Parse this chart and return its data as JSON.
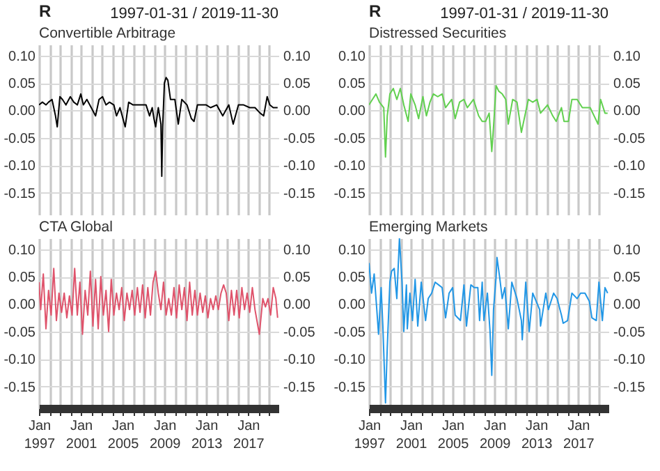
{
  "chart_data": [
    {
      "type": "line",
      "title": "Convertible Arbitrage",
      "annotations": [
        "R",
        "1997-01-31 / 2019-11-30"
      ],
      "tick_labels": "y",
      "grid": true,
      "xlim": [
        "1997-01",
        "2019-12"
      ],
      "ylim": [
        -0.19,
        0.12
      ],
      "yticks": [
        -0.15,
        {
          "value": -0.1,
          "label": "-0.10"
        },
        -0.05,
        {
          "value": 0,
          "label": "0.00"
        },
        0.05,
        {
          "value": 0.1,
          "label": "0.10"
        }
      ],
      "y2lim": [
        -0.19,
        0.12
      ],
      "y2ticks": [
        -0.15,
        {
          "value": -0.1,
          "label": "-0.10"
        },
        -0.05,
        {
          "value": 0,
          "label": "0.00"
        },
        0.05,
        {
          "value": 0.1,
          "label": "0.10"
        }
      ],
      "xticks": [
        {
          "value": "1997-01",
          "label": null
        },
        {
          "value": "1998-01",
          "label": null
        },
        {
          "value": "1999-01",
          "label": null
        },
        {
          "value": "2000-01",
          "label": null
        },
        {
          "value": "2001-01",
          "label": null
        },
        {
          "value": "2002-01",
          "label": null
        },
        {
          "value": "2003-01",
          "label": null
        },
        {
          "value": "2004-01",
          "label": null
        },
        {
          "value": "2005-01",
          "label": null
        },
        {
          "value": "2006-01",
          "label": null
        },
        {
          "value": "2007-01",
          "label": null
        },
        {
          "value": "2008-01",
          "label": null
        },
        {
          "value": "2009-01",
          "label": null
        },
        {
          "value": "2010-01",
          "label": null
        },
        {
          "value": "2011-01",
          "label": null
        },
        {
          "value": "2012-01",
          "label": null
        },
        {
          "value": "2013-01",
          "label": null
        },
        {
          "value": "2014-01",
          "label": null
        },
        {
          "value": "2015-01",
          "label": null
        },
        {
          "value": "2016-01",
          "label": null
        },
        {
          "value": "2017-01",
          "label": null
        },
        {
          "value": "2018-01",
          "label": null
        },
        {
          "value": "2019-01",
          "label": null
        }
      ],
      "series": [
        {
          "color": "#000000",
          "x": [
            "1997-01",
            "1997-05",
            "1997-09",
            "1997-12",
            "1998-04",
            "1998-08",
            "1998-10",
            "1999-01",
            "1999-04",
            "1999-08",
            "2000-01",
            "2000-05",
            "2000-09",
            "2001-01",
            "2001-04",
            "2001-08",
            "2002-01",
            "2002-06",
            "2002-10",
            "2003-02",
            "2003-06",
            "2003-10",
            "2004-03",
            "2004-06",
            "2004-10",
            "2005-04",
            "2005-08",
            "2006-01",
            "2006-06",
            "2006-12",
            "2007-04",
            "2007-08",
            "2007-11",
            "2008-01",
            "2008-03",
            "2008-06",
            "2008-09",
            "2008-10",
            "2008-11",
            "2009-01",
            "2009-03",
            "2009-05",
            "2009-08",
            "2010-01",
            "2010-05",
            "2010-09",
            "2011-03",
            "2011-08",
            "2011-11",
            "2012-03",
            "2012-08",
            "2013-01",
            "2013-06",
            "2014-01",
            "2014-08",
            "2015-03",
            "2015-08",
            "2016-02",
            "2016-08",
            "2017-03",
            "2017-09",
            "2018-03",
            "2018-07",
            "2018-11",
            "2019-02",
            "2019-06",
            "2019-11"
          ],
          "values": [
            0.01,
            0.015,
            0.01,
            0.015,
            0.02,
            -0.01,
            -0.03,
            0.025,
            0.02,
            0.01,
            0.025,
            0.015,
            0.01,
            0.03,
            0.01,
            0.02,
            0.005,
            -0.01,
            0.02,
            0.025,
            0.01,
            0.015,
            0.01,
            -0.01,
            0.005,
            -0.03,
            0.015,
            0.01,
            0.01,
            0.01,
            0.01,
            -0.01,
            0.005,
            -0.015,
            -0.03,
            0.005,
            -0.025,
            -0.12,
            -0.03,
            0.05,
            0.06,
            0.055,
            0.02,
            0.02,
            -0.025,
            0.02,
            0.01,
            -0.015,
            -0.02,
            0.01,
            0.01,
            0.01,
            0.005,
            0.01,
            -0.01,
            0.01,
            -0.025,
            0.01,
            0.01,
            0.005,
            0.005,
            -0.005,
            -0.01,
            0.025,
            0.01,
            0.005,
            0.005
          ]
        }
      ]
    },
    {
      "type": "line",
      "title": "Distressed Securities",
      "annotations": [
        "R",
        "1997-01-31 / 2019-11-30"
      ],
      "tick_labels": "y",
      "grid": true,
      "xlim": [
        "1997-01",
        "2019-12"
      ],
      "ylim": [
        -0.19,
        0.12
      ],
      "yticks": [
        -0.15,
        {
          "value": -0.1,
          "label": "-0.10"
        },
        -0.05,
        {
          "value": 0,
          "label": "0.00"
        },
        0.05,
        {
          "value": 0.1,
          "label": "0.10"
        }
      ],
      "y2lim": [
        -0.19,
        0.12
      ],
      "y2ticks": [
        -0.15,
        {
          "value": -0.1,
          "label": "-0.10"
        },
        -0.05,
        {
          "value": 0,
          "label": "0.00"
        },
        0.05,
        {
          "value": 0.1,
          "label": "0.10"
        }
      ],
      "xticks": [
        {
          "value": "1997-01",
          "label": null
        },
        {
          "value": "1998-01",
          "label": null
        },
        {
          "value": "1999-01",
          "label": null
        },
        {
          "value": "2000-01",
          "label": null
        },
        {
          "value": "2001-01",
          "label": null
        },
        {
          "value": "2002-01",
          "label": null
        },
        {
          "value": "2003-01",
          "label": null
        },
        {
          "value": "2004-01",
          "label": null
        },
        {
          "value": "2005-01",
          "label": null
        },
        {
          "value": "2006-01",
          "label": null
        },
        {
          "value": "2007-01",
          "label": null
        },
        {
          "value": "2008-01",
          "label": null
        },
        {
          "value": "2009-01",
          "label": null
        },
        {
          "value": "2010-01",
          "label": null
        },
        {
          "value": "2011-01",
          "label": null
        },
        {
          "value": "2012-01",
          "label": null
        },
        {
          "value": "2013-01",
          "label": null
        },
        {
          "value": "2014-01",
          "label": null
        },
        {
          "value": "2015-01",
          "label": null
        },
        {
          "value": "2016-01",
          "label": null
        },
        {
          "value": "2017-01",
          "label": null
        },
        {
          "value": "2018-01",
          "label": null
        },
        {
          "value": "2019-01",
          "label": null
        }
      ],
      "series": [
        {
          "color": "#61d04f",
          "x": [
            "1997-01",
            "1997-05",
            "1997-09",
            "1998-01",
            "1998-06",
            "1998-08",
            "1998-10",
            "1999-01",
            "1999-05",
            "1999-09",
            "2000-01",
            "2000-05",
            "2000-10",
            "2001-01",
            "2001-06",
            "2001-10",
            "2002-03",
            "2002-07",
            "2002-11",
            "2003-03",
            "2003-08",
            "2004-01",
            "2004-05",
            "2004-12",
            "2005-04",
            "2005-09",
            "2006-02",
            "2006-06",
            "2007-01",
            "2007-07",
            "2007-11",
            "2008-03",
            "2008-07",
            "2008-10",
            "2008-12",
            "2009-03",
            "2009-06",
            "2009-10",
            "2010-02",
            "2010-05",
            "2010-10",
            "2011-03",
            "2011-08",
            "2011-12",
            "2012-04",
            "2012-09",
            "2013-02",
            "2013-06",
            "2014-02",
            "2014-08",
            "2014-12",
            "2015-06",
            "2015-09",
            "2016-02",
            "2016-06",
            "2016-12",
            "2017-06",
            "2018-03",
            "2018-12",
            "2019-03",
            "2019-08",
            "2019-11"
          ],
          "values": [
            0.01,
            0.02,
            0.03,
            0.015,
            0.005,
            -0.085,
            -0.01,
            0.03,
            0.04,
            0.02,
            0.04,
            0.01,
            -0.02,
            0.03,
            0.01,
            -0.015,
            0.025,
            -0.01,
            0.015,
            0.03,
            0.025,
            0.03,
            0.005,
            0.02,
            -0.015,
            0.015,
            0.02,
            0.005,
            0.02,
            -0.01,
            -0.02,
            -0.02,
            -0.005,
            -0.075,
            -0.03,
            0.045,
            0.035,
            0.03,
            0.02,
            -0.025,
            0.02,
            0.015,
            -0.04,
            -0.01,
            0.02,
            0.015,
            0.02,
            -0.005,
            0.01,
            -0.01,
            -0.02,
            0.005,
            -0.02,
            -0.02,
            0.02,
            0.02,
            0.005,
            0.005,
            -0.025,
            0.02,
            -0.005,
            -0.005
          ]
        }
      ]
    },
    {
      "type": "line",
      "title": "CTA Global",
      "grid": true,
      "xlim": [
        "1997-01",
        "2019-12"
      ],
      "ylim": [
        -0.19,
        0.12
      ],
      "yticks": [
        -0.15,
        {
          "value": -0.1,
          "label": "-0.10"
        },
        -0.05,
        {
          "value": 0,
          "label": "0.00"
        },
        0.05,
        {
          "value": 0.1,
          "label": "0.10"
        }
      ],
      "y2lim": [
        -0.19,
        0.12
      ],
      "y2ticks": [
        -0.15,
        {
          "value": -0.1,
          "label": "-0.10"
        },
        -0.05,
        {
          "value": 0,
          "label": "0.00"
        },
        0.05,
        {
          "value": 0.1,
          "label": "0.10"
        }
      ],
      "xticks": [
        {
          "value": "1997-01",
          "label": "Jan 1997"
        },
        {
          "value": "1998-01",
          "label": null
        },
        {
          "value": "1999-01",
          "label": null
        },
        {
          "value": "2000-01",
          "label": null
        },
        {
          "value": "2001-01",
          "label": "Jan 2001"
        },
        {
          "value": "2002-01",
          "label": null
        },
        {
          "value": "2003-01",
          "label": null
        },
        {
          "value": "2004-01",
          "label": null
        },
        {
          "value": "2005-01",
          "label": "Jan 2005"
        },
        {
          "value": "2006-01",
          "label": null
        },
        {
          "value": "2007-01",
          "label": null
        },
        {
          "value": "2008-01",
          "label": null
        },
        {
          "value": "2009-01",
          "label": "Jan 2009"
        },
        {
          "value": "2010-01",
          "label": null
        },
        {
          "value": "2011-01",
          "label": null
        },
        {
          "value": "2012-01",
          "label": null
        },
        {
          "value": "2013-01",
          "label": "Jan 2013"
        },
        {
          "value": "2014-01",
          "label": null
        },
        {
          "value": "2015-01",
          "label": null
        },
        {
          "value": "2016-01",
          "label": null
        },
        {
          "value": "2017-01",
          "label": "Jan 2017"
        },
        {
          "value": "2018-01",
          "label": null
        },
        {
          "value": "2019-01",
          "label": null
        }
      ],
      "series": [
        {
          "color": "#df536b",
          "x": [
            "1997-01",
            "1997-03",
            "1997-06",
            "1997-09",
            "1997-12",
            "1998-03",
            "1998-06",
            "1998-09",
            "1998-12",
            "1999-03",
            "1999-06",
            "1999-09",
            "1999-12",
            "2000-03",
            "2000-06",
            "2000-09",
            "2000-12",
            "2001-03",
            "2001-06",
            "2001-09",
            "2001-12",
            "2002-03",
            "2002-06",
            "2002-09",
            "2002-12",
            "2003-03",
            "2003-06",
            "2003-09",
            "2003-12",
            "2004-03",
            "2004-06",
            "2004-09",
            "2004-12",
            "2005-03",
            "2005-06",
            "2005-09",
            "2005-12",
            "2006-03",
            "2006-06",
            "2006-09",
            "2006-12",
            "2007-03",
            "2007-06",
            "2007-09",
            "2007-12",
            "2008-03",
            "2008-06",
            "2008-09",
            "2008-12",
            "2009-03",
            "2009-06",
            "2009-09",
            "2009-12",
            "2010-03",
            "2010-06",
            "2010-09",
            "2010-12",
            "2011-03",
            "2011-06",
            "2011-09",
            "2011-12",
            "2012-03",
            "2012-06",
            "2012-09",
            "2012-12",
            "2013-03",
            "2013-06",
            "2013-09",
            "2013-12",
            "2014-03",
            "2014-06",
            "2014-09",
            "2014-12",
            "2015-03",
            "2015-06",
            "2015-09",
            "2015-12",
            "2016-03",
            "2016-06",
            "2016-09",
            "2016-12",
            "2017-03",
            "2017-06",
            "2017-09",
            "2018-02",
            "2018-06",
            "2018-09",
            "2018-12",
            "2019-03",
            "2019-06",
            "2019-09",
            "2019-11"
          ],
          "values": [
            0.04,
            -0.01,
            0.055,
            -0.045,
            0.025,
            -0.02,
            0.065,
            -0.03,
            0.02,
            -0.015,
            0.02,
            -0.025,
            0.015,
            -0.02,
            0.065,
            -0.02,
            0.04,
            -0.055,
            0.025,
            -0.02,
            0.06,
            -0.04,
            0.045,
            -0.045,
            0.05,
            -0.02,
            0.025,
            -0.05,
            0.045,
            -0.02,
            0.02,
            -0.01,
            0.03,
            -0.03,
            0.02,
            -0.01,
            0.025,
            -0.02,
            0.03,
            -0.015,
            0.035,
            -0.025,
            0.03,
            -0.02,
            0.04,
            0.06,
            0.02,
            -0.01,
            0.04,
            -0.02,
            0.01,
            -0.02,
            0.03,
            -0.025,
            0.035,
            -0.01,
            0.03,
            -0.03,
            0.04,
            -0.02,
            0.025,
            -0.02,
            0.02,
            -0.015,
            0.015,
            -0.025,
            0.01,
            -0.01,
            0.015,
            -0.01,
            0.02,
            0.035,
            0.02,
            -0.03,
            0.025,
            -0.02,
            0.025,
            -0.025,
            0.03,
            -0.01,
            0.02,
            -0.015,
            0.03,
            -0.01,
            -0.055,
            0.01,
            -0.005,
            0.01,
            -0.02,
            0.03,
            0.01,
            -0.025
          ]
        }
      ]
    },
    {
      "type": "line",
      "title": "Emerging Markets",
      "grid": true,
      "xlim": [
        "1997-01",
        "2019-12"
      ],
      "ylim": [
        -0.19,
        0.12
      ],
      "yticks": [
        -0.15,
        {
          "value": -0.1,
          "label": "-0.10"
        },
        -0.05,
        {
          "value": 0,
          "label": "0.00"
        },
        0.05,
        {
          "value": 0.1,
          "label": "0.10"
        }
      ],
      "y2lim": [
        -0.19,
        0.12
      ],
      "y2ticks": [
        -0.15,
        {
          "value": -0.1,
          "label": "-0.10"
        },
        -0.05,
        {
          "value": 0,
          "label": "0.00"
        },
        0.05,
        {
          "value": 0.1,
          "label": "0.10"
        }
      ],
      "xticks": [
        {
          "value": "1997-01",
          "label": "Jan 1997"
        },
        {
          "value": "1998-01",
          "label": null
        },
        {
          "value": "1999-01",
          "label": null
        },
        {
          "value": "2000-01",
          "label": null
        },
        {
          "value": "2001-01",
          "label": "Jan 2001"
        },
        {
          "value": "2002-01",
          "label": null
        },
        {
          "value": "2003-01",
          "label": null
        },
        {
          "value": "2004-01",
          "label": null
        },
        {
          "value": "2005-01",
          "label": "Jan 2005"
        },
        {
          "value": "2006-01",
          "label": null
        },
        {
          "value": "2007-01",
          "label": null
        },
        {
          "value": "2008-01",
          "label": null
        },
        {
          "value": "2009-01",
          "label": "Jan 2009"
        },
        {
          "value": "2010-01",
          "label": null
        },
        {
          "value": "2011-01",
          "label": null
        },
        {
          "value": "2012-01",
          "label": null
        },
        {
          "value": "2013-01",
          "label": "Jan 2013"
        },
        {
          "value": "2014-01",
          "label": null
        },
        {
          "value": "2015-01",
          "label": null
        },
        {
          "value": "2016-01",
          "label": null
        },
        {
          "value": "2017-01",
          "label": "Jan 2017"
        },
        {
          "value": "2018-01",
          "label": null
        },
        {
          "value": "2019-01",
          "label": null
        }
      ],
      "series": [
        {
          "color": "#2297e6",
          "x": [
            "1997-01",
            "1997-04",
            "1997-07",
            "1997-10",
            "1997-12",
            "1998-03",
            "1998-05",
            "1998-08",
            "1998-10",
            "1999-01",
            "1999-03",
            "1999-06",
            "1999-09",
            "1999-12",
            "2000-03",
            "2000-05",
            "2000-08",
            "2000-09",
            "2000-12",
            "2001-03",
            "2001-06",
            "2001-09",
            "2002-01",
            "2002-06",
            "2002-09",
            "2003-01",
            "2003-05",
            "2003-09",
            "2004-01",
            "2004-05",
            "2004-09",
            "2005-01",
            "2005-04",
            "2005-10",
            "2006-02",
            "2006-05",
            "2006-10",
            "2007-02",
            "2007-06",
            "2007-08",
            "2007-11",
            "2008-01",
            "2008-05",
            "2008-08",
            "2008-10",
            "2008-12",
            "2009-03",
            "2009-04",
            "2009-07",
            "2009-10",
            "2010-01",
            "2010-05",
            "2010-09",
            "2011-03",
            "2011-08",
            "2011-09",
            "2012-01",
            "2012-05",
            "2012-09",
            "2013-05",
            "2013-06",
            "2013-12",
            "2014-03",
            "2014-09",
            "2015-01",
            "2015-06",
            "2015-08",
            "2016-01",
            "2016-06",
            "2016-12",
            "2017-04",
            "2017-09",
            "2018-02",
            "2018-05",
            "2018-10",
            "2019-01",
            "2019-05",
            "2019-08",
            "2019-11"
          ],
          "values": [
            0.075,
            0.02,
            0.055,
            -0.01,
            -0.055,
            0.03,
            -0.04,
            -0.18,
            -0.08,
            0.04,
            0.06,
            0.065,
            0.01,
            0.12,
            0.04,
            -0.05,
            0.035,
            -0.045,
            0.02,
            -0.03,
            0.045,
            -0.04,
            0.04,
            -0.03,
            0.01,
            0.02,
            0.04,
            0.035,
            0.03,
            -0.025,
            0.02,
            0.03,
            -0.02,
            -0.03,
            0.035,
            -0.04,
            0.035,
            0.03,
            0.03,
            -0.03,
            0.04,
            -0.03,
            0.02,
            -0.05,
            -0.13,
            -0.01,
            0.05,
            0.085,
            0.05,
            0.01,
            0.03,
            -0.045,
            0.04,
            0.01,
            -0.03,
            -0.065,
            0.04,
            -0.05,
            0.02,
            -0.01,
            -0.04,
            0.02,
            -0.01,
            0.02,
            0.01,
            -0.02,
            -0.035,
            -0.03,
            0.02,
            0.01,
            0.02,
            0.02,
            0.005,
            -0.025,
            -0.03,
            0.04,
            -0.03,
            0.03,
            0.02
          ]
        }
      ]
    }
  ]
}
